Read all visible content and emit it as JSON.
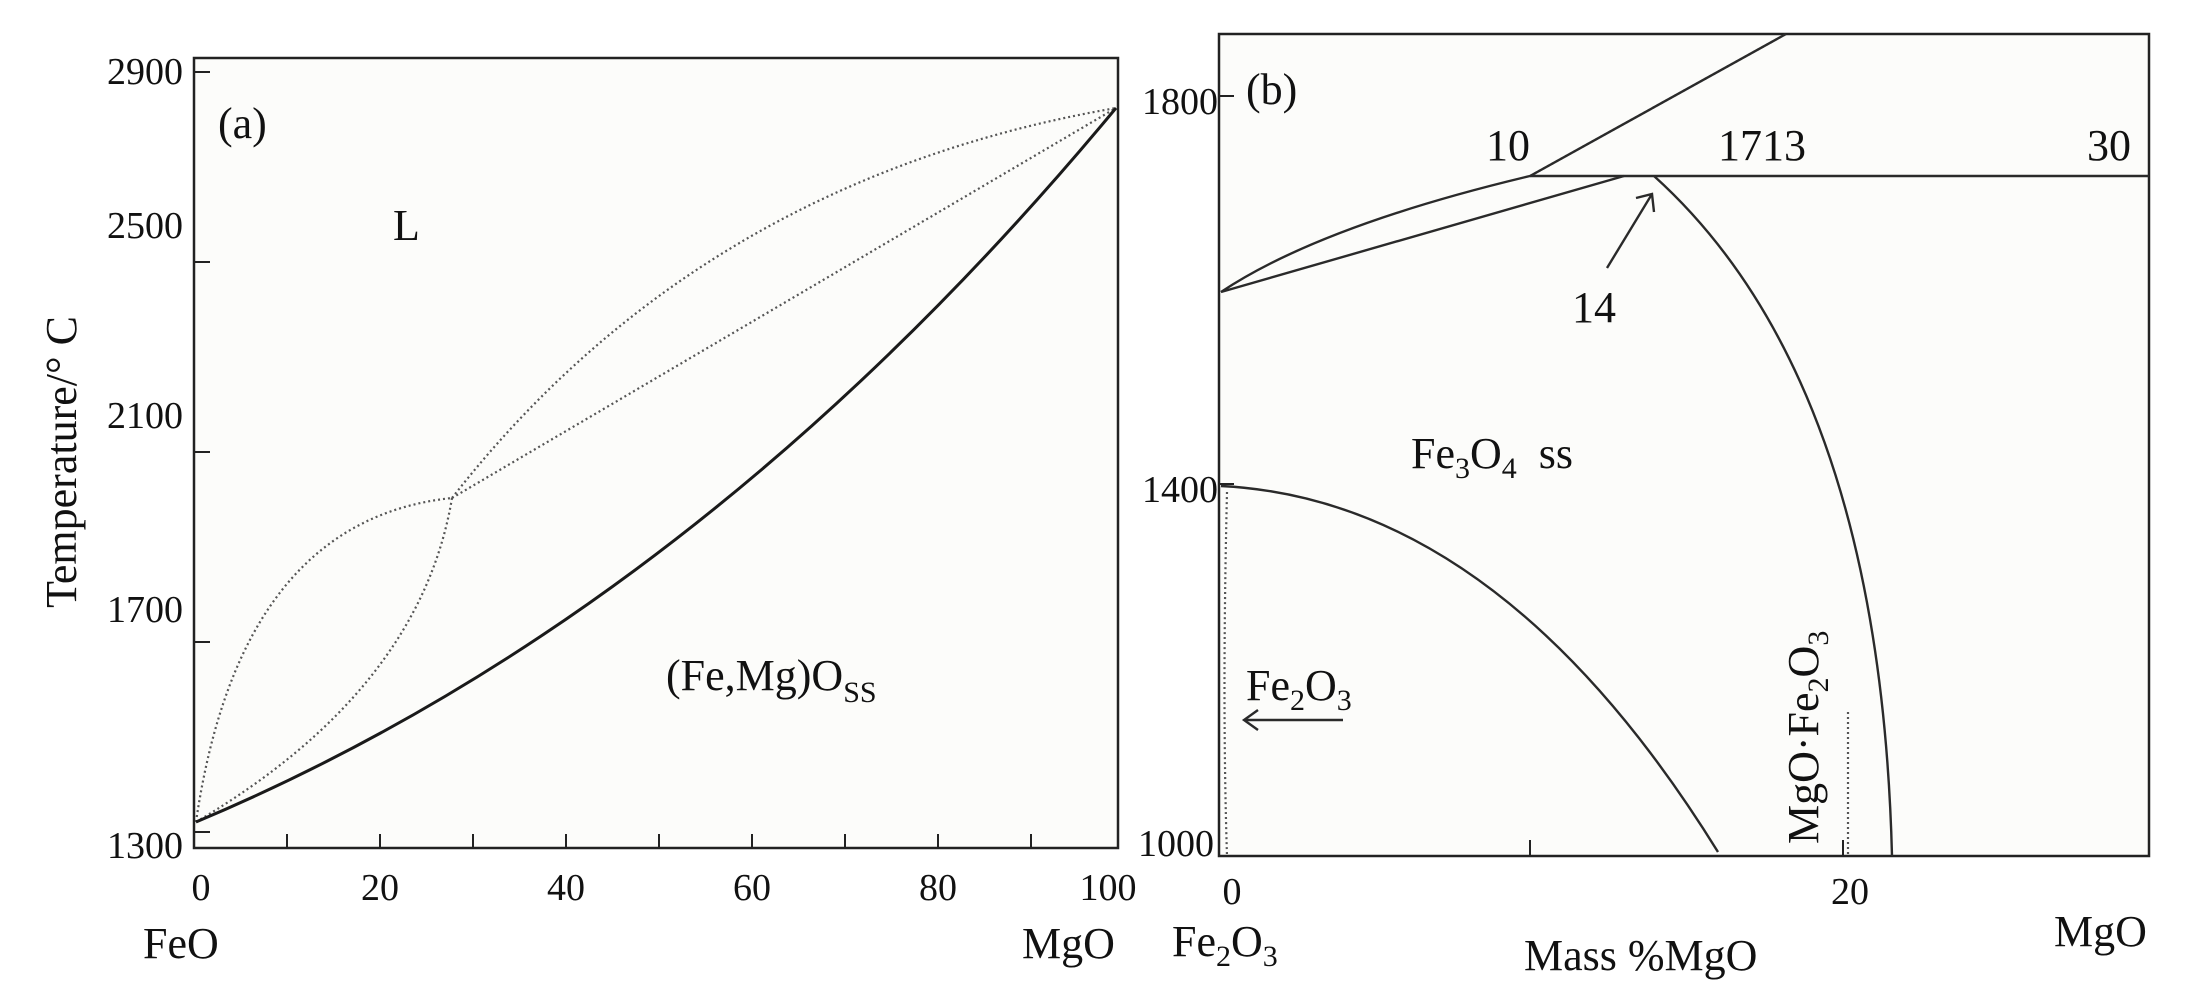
{
  "panel_a": {
    "label": "(a)",
    "y_axis_title": "Temperature/° C",
    "y_ticks": [
      "2900",
      "2500",
      "2100",
      "1700",
      "1300"
    ],
    "x_ticks": [
      "0",
      "20",
      "40",
      "60",
      "80",
      "100"
    ],
    "x_end_left": "FeO",
    "x_end_right": "MgO",
    "region_liquid": "L",
    "region_solid_main": "(Fe,Mg)O",
    "region_solid_sub": "SS"
  },
  "panel_b": {
    "label": "(b)",
    "y_ticks": [
      "1800",
      "1400",
      "1000"
    ],
    "x_ticks": [
      "0",
      "20"
    ],
    "x_end_left_main": "Fe",
    "x_end_left_sub1": "2",
    "x_end_left_sub2": "O",
    "x_end_left_sub3": "3",
    "x_end_right": "MgO",
    "x_axis_title": "Mass %MgO",
    "ann_10": "10",
    "ann_1713": "1713",
    "ann_30": "30",
    "ann_14": "14",
    "region_fe3o4_a": "Fe",
    "region_fe3o4_b": "3",
    "region_fe3o4_c": "O",
    "region_fe3o4_d": "4",
    "region_fe3o4_ss": "ss",
    "region_fe2o3_a": "Fe",
    "region_fe2o3_b": "2",
    "region_fe2o3_c": "O",
    "region_fe2o3_d": "3",
    "region_spinel_a": "MgO·Fe",
    "region_spinel_b": "2",
    "region_spinel_c": "O",
    "region_spinel_d": "3"
  }
}
